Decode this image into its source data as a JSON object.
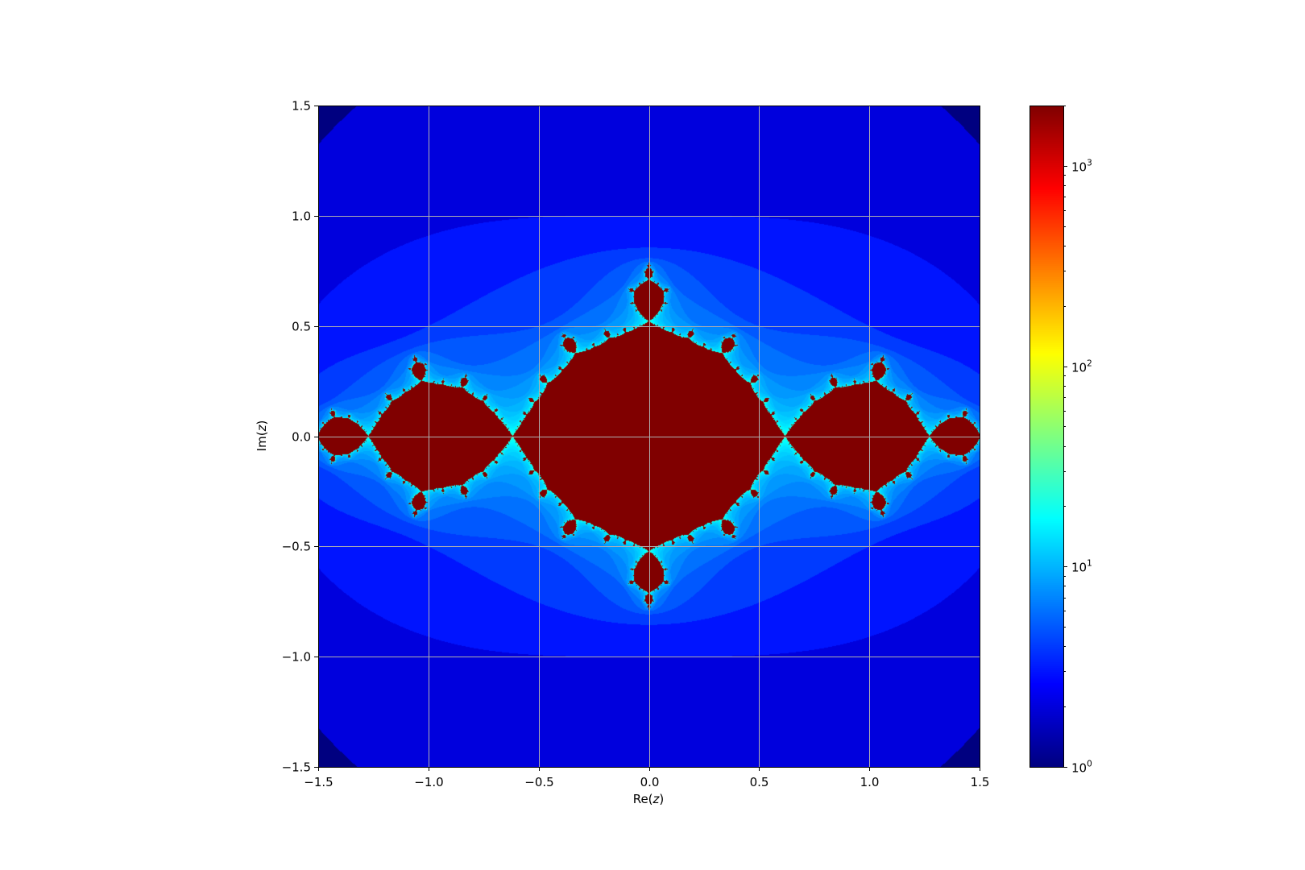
{
  "chart_data": {
    "type": "heatmap",
    "title": "",
    "xlabel": "Re(z)",
    "xlabel_parts": {
      "prefix": "Re(",
      "var": "z",
      "suffix": ")"
    },
    "ylabel": "Im(z)",
    "ylabel_parts": {
      "prefix": "Im(",
      "var": "z",
      "suffix": ")"
    },
    "xlim": [
      -1.5,
      1.5
    ],
    "ylim": [
      -1.5,
      1.5
    ],
    "x_ticks": [
      -1.5,
      -1.0,
      -0.5,
      0.0,
      0.5,
      1.0,
      1.5
    ],
    "x_tick_labels": [
      "−1.5",
      "−1.0",
      "−0.5",
      "0.0",
      "0.5",
      "1.0",
      "1.5"
    ],
    "y_ticks": [
      -1.5,
      -1.0,
      -0.5,
      0.0,
      0.5,
      1.0,
      1.5
    ],
    "y_tick_labels": [
      "−1.5",
      "−1.0",
      "−0.5",
      "0.0",
      "0.5",
      "1.0",
      "1.5"
    ],
    "grid": true,
    "colormap": "jet",
    "color_scale": "log",
    "colorbar": {
      "range": [
        1,
        2000
      ],
      "ticks": [
        1,
        10,
        100,
        1000
      ],
      "tick_labels": [
        {
          "base": "10",
          "exp": "0"
        },
        {
          "base": "10",
          "exp": "1"
        },
        {
          "base": "10",
          "exp": "2"
        },
        {
          "base": "10",
          "exp": "3"
        }
      ],
      "placement": "right"
    },
    "julia_parameter_c": [
      -1.0,
      0.0
    ],
    "escape_radius": 2,
    "max_iterations": 2000,
    "colors": {
      "interior": "#800000",
      "grid": "#b0b0b0",
      "frame": "#000000"
    }
  }
}
